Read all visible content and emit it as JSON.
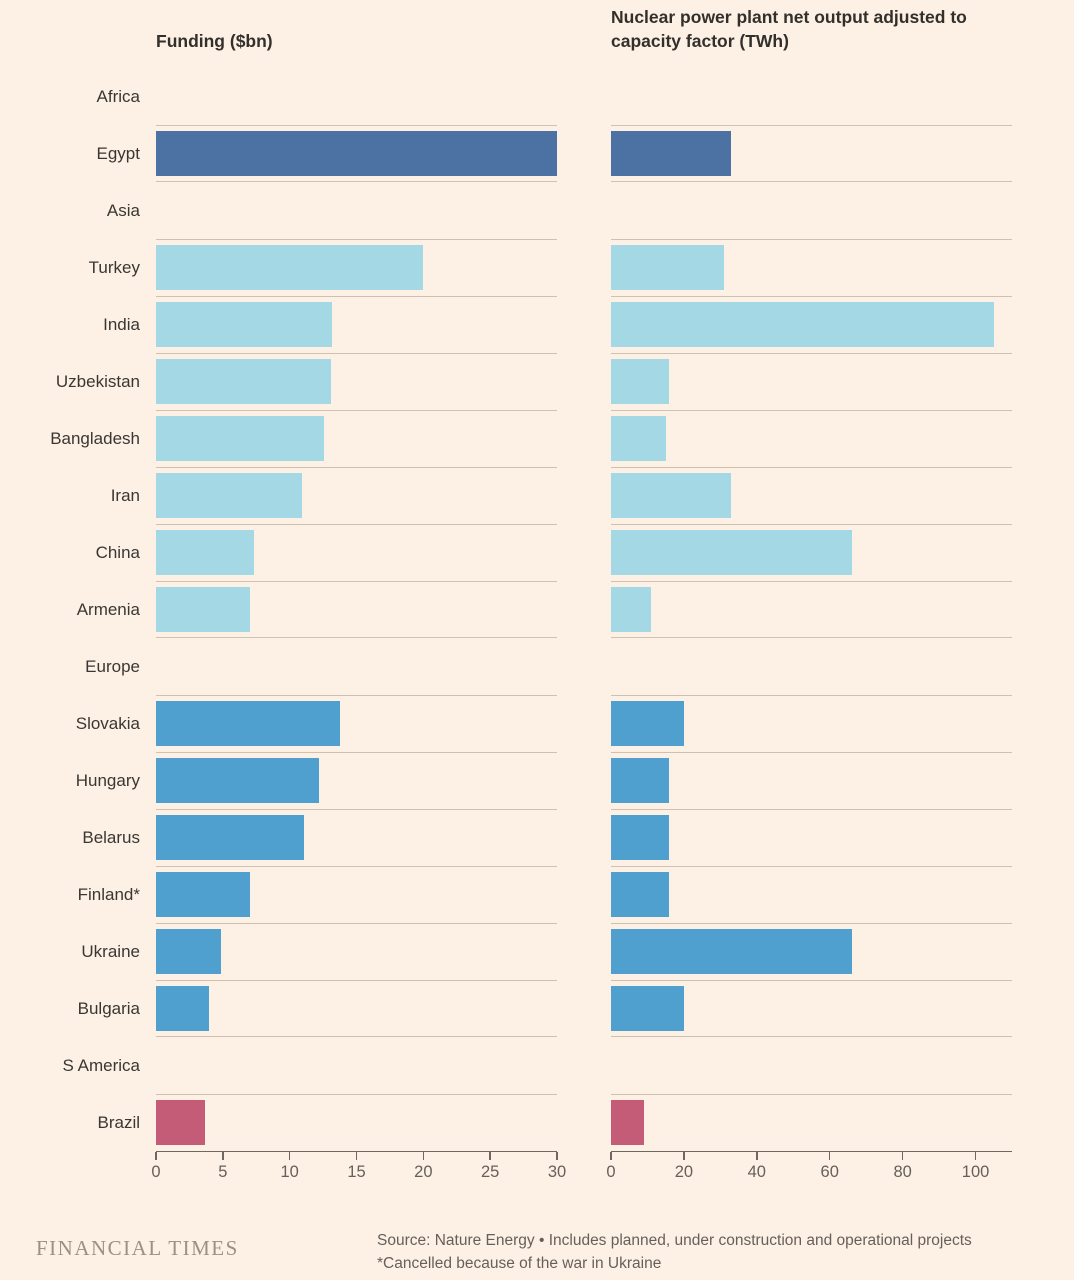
{
  "page": {
    "background": "#FDF1E5",
    "separator_color": "#CFC1B0",
    "axis_color": "#6E6860",
    "text_color": "#33302C"
  },
  "titles": {
    "left": "Funding ($bn)",
    "right_line1": "Nuclear power plant net output adjusted to",
    "right_line2": "capacity factor (TWh)"
  },
  "chart_data": {
    "type": "bar",
    "orientation": "horizontal",
    "grid": "row-separators",
    "panels": [
      {
        "id": "funding",
        "title": "Funding ($bn)",
        "xlim": [
          0,
          30
        ],
        "ticks": [
          0,
          5,
          10,
          15,
          20,
          25,
          30
        ]
      },
      {
        "id": "output",
        "title": "Nuclear power plant net output adjusted to capacity factor (TWh)",
        "xlim": [
          0,
          110
        ],
        "ticks": [
          0,
          20,
          40,
          60,
          80,
          100
        ]
      }
    ],
    "groups": [
      {
        "region": "Africa",
        "color": "#4C72A3",
        "countries": [
          {
            "name": "Egypt",
            "funding_bn": 30,
            "output_twh": 33
          }
        ]
      },
      {
        "region": "Asia",
        "color": "#A5D8E5",
        "countries": [
          {
            "name": "Turkey",
            "funding_bn": 20,
            "output_twh": 31
          },
          {
            "name": "India",
            "funding_bn": 13.2,
            "output_twh": 105
          },
          {
            "name": "Uzbekistan",
            "funding_bn": 13.1,
            "output_twh": 16
          },
          {
            "name": "Bangladesh",
            "funding_bn": 12.6,
            "output_twh": 15
          },
          {
            "name": "Iran",
            "funding_bn": 10.9,
            "output_twh": 33
          },
          {
            "name": "China",
            "funding_bn": 7.3,
            "output_twh": 66
          },
          {
            "name": "Armenia",
            "funding_bn": 7,
            "output_twh": 11
          }
        ]
      },
      {
        "region": "Europe",
        "color": "#4F9FCF",
        "countries": [
          {
            "name": "Slovakia",
            "funding_bn": 13.8,
            "output_twh": 20
          },
          {
            "name": "Hungary",
            "funding_bn": 12.2,
            "output_twh": 16
          },
          {
            "name": "Belarus",
            "funding_bn": 11.1,
            "output_twh": 16
          },
          {
            "name": "Finland*",
            "funding_bn": 7,
            "output_twh": 16
          },
          {
            "name": "Ukraine",
            "funding_bn": 4.9,
            "output_twh": 66
          },
          {
            "name": "Bulgaria",
            "funding_bn": 4,
            "output_twh": 20
          }
        ]
      },
      {
        "region": "S America",
        "color": "#C45C78",
        "countries": [
          {
            "name": "Brazil",
            "funding_bn": 3.7,
            "output_twh": 9
          }
        ]
      }
    ]
  },
  "footer": {
    "logo": "FINANCIAL TIMES",
    "source_line1": "Source: Nature Energy • Includes planned, under construction and operational projects",
    "source_line2": "*Cancelled because of the war in Ukraine"
  }
}
